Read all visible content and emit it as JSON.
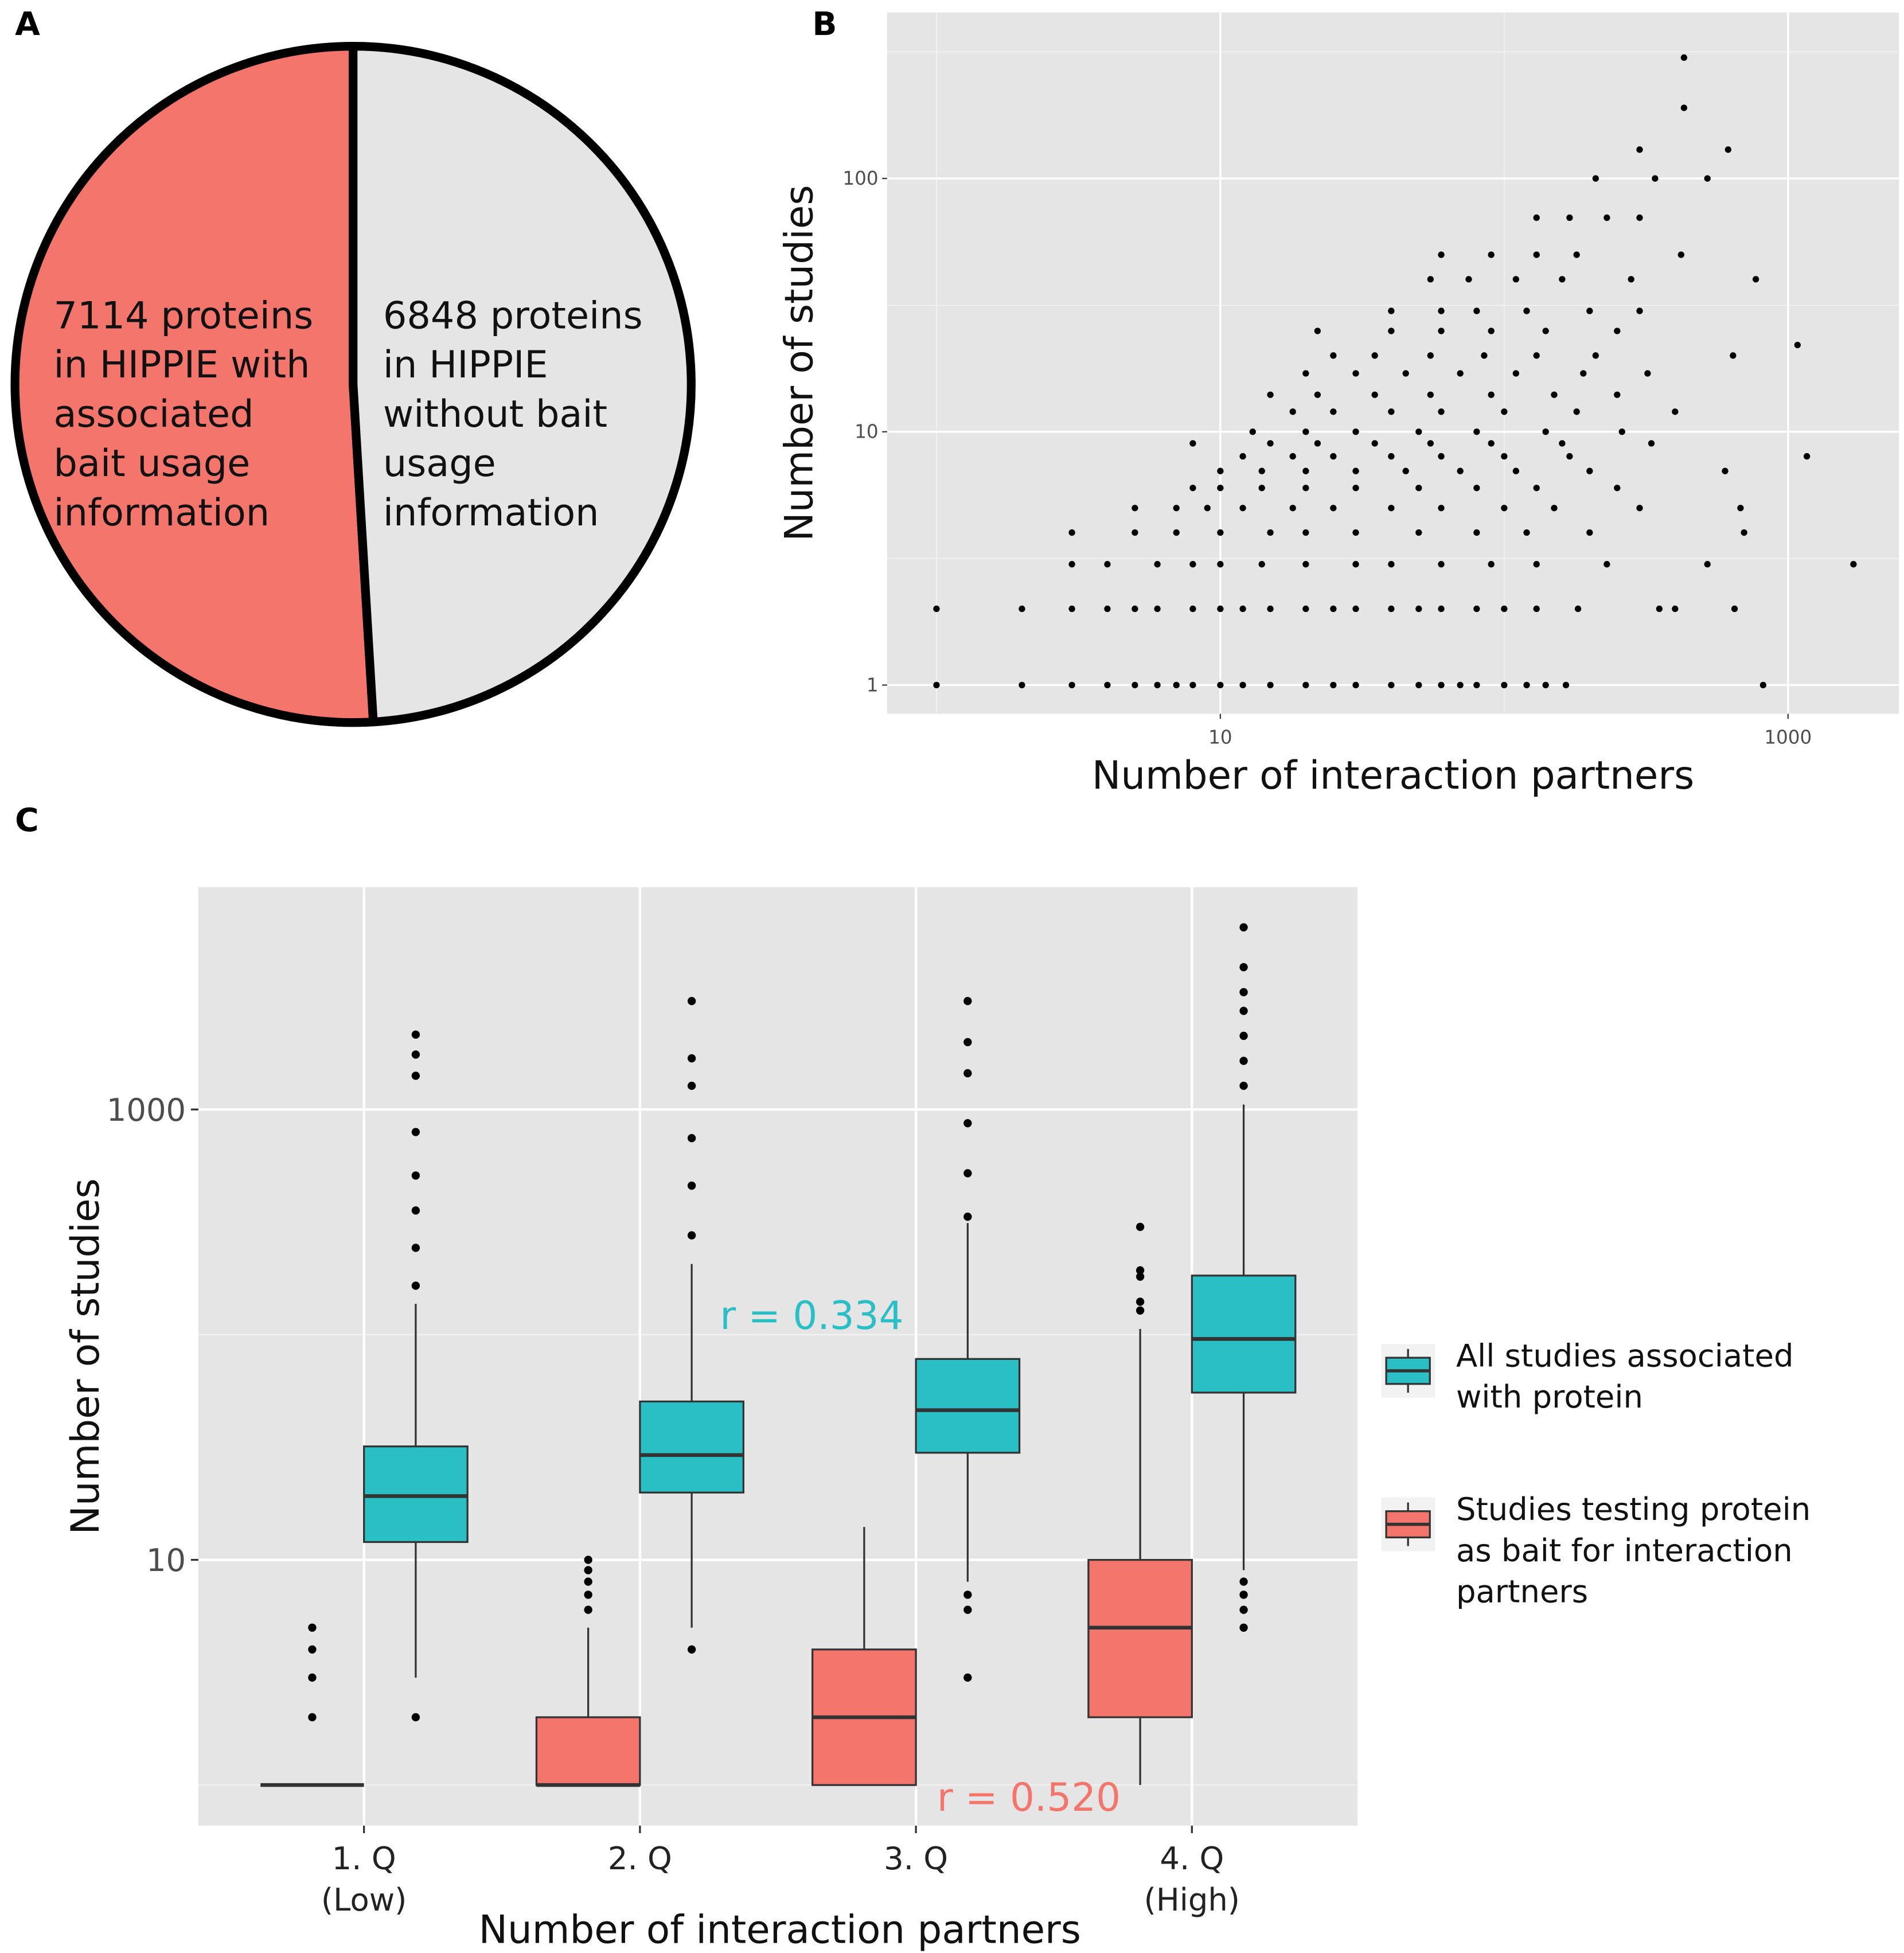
{
  "chart_data": [
    {
      "type": "pie",
      "panel": "A",
      "values": [
        7114,
        6848
      ],
      "colors": [
        "#f4756c",
        "#e5e5e5"
      ],
      "label_lines": [
        [
          "7114 proteins",
          "in HIPPIE with",
          "associated",
          "bait usage",
          "information"
        ],
        [
          "6848 proteins",
          "in HIPPIE",
          "without bait",
          "usage",
          "information"
        ]
      ]
    },
    {
      "type": "scatter",
      "panel": "B",
      "xlabel": "Number of interaction partners",
      "ylabel": "Number of studies",
      "log_x": true,
      "log_y": true,
      "grid": true,
      "color": "#000000",
      "xlim": [
        0.67,
        2460
      ],
      "ylim": [
        0.77,
        452
      ],
      "xticks": [
        10,
        1000
      ],
      "yticks": [
        1,
        10,
        100
      ],
      "minor_xticks": [
        1,
        100
      ],
      "minor_yticks": [
        3.16,
        31.6,
        316
      ],
      "x": [
        1,
        2,
        3,
        4,
        5,
        6,
        7,
        8,
        10,
        12,
        15,
        20,
        25,
        30,
        40,
        50,
        60,
        70,
        80,
        100,
        120,
        140,
        165,
        817,
        1,
        2,
        3,
        4,
        5,
        6,
        8,
        10,
        12,
        15,
        20,
        25,
        30,
        40,
        50,
        60,
        80,
        100,
        130,
        182,
        352,
        400,
        648,
        3,
        4,
        6,
        8,
        10,
        14,
        20,
        30,
        40,
        60,
        90,
        130,
        230,
        520,
        1700,
        3,
        5,
        7,
        10,
        15,
        20,
        30,
        50,
        80,
        120,
        200,
        700,
        5,
        7,
        9,
        12,
        18,
        25,
        40,
        60,
        100,
        150,
        300,
        680,
        8,
        10,
        14,
        20,
        30,
        50,
        80,
        130,
        250,
        10,
        14,
        20,
        30,
        45,
        70,
        110,
        200,
        600,
        12,
        18,
        25,
        40,
        60,
        100,
        170,
        1165,
        8,
        15,
        22,
        35,
        55,
        90,
        160,
        330,
        13,
        20,
        30,
        50,
        80,
        140,
        260,
        18,
        25,
        40,
        60,
        100,
        180,
        400,
        15,
        22,
        35,
        55,
        90,
        150,
        250,
        20,
        30,
        45,
        70,
        110,
        190,
        320,
        25,
        35,
        55,
        85,
        130,
        210,
        640,
        1080,
        22,
        40,
        60,
        90,
        140,
        250,
        40,
        60,
        80,
        120,
        200,
        300,
        55,
        75,
        110,
        160,
        280,
        770,
        60,
        90,
        130,
        180,
        420,
        130,
        170,
        230,
        300,
        210,
        340,
        520,
        300,
        615,
        430,
        430
      ],
      "y": [
        1,
        1,
        1,
        1,
        1,
        1,
        1,
        1,
        1,
        1,
        1,
        1,
        1,
        1,
        1,
        1,
        1,
        1,
        1,
        1,
        1,
        1,
        1,
        1,
        2,
        2,
        2,
        2,
        2,
        2,
        2,
        2,
        2,
        2,
        2,
        2,
        2,
        2,
        2,
        2,
        2,
        2,
        2,
        2,
        2,
        2,
        2,
        3,
        3,
        3,
        3,
        3,
        3,
        3,
        3,
        3,
        3,
        3,
        3,
        3,
        3,
        3,
        4,
        4,
        4,
        4,
        4,
        4,
        4,
        4,
        4,
        4,
        4,
        4,
        5,
        5,
        5,
        5,
        5,
        5,
        5,
        5,
        5,
        5,
        5,
        5,
        6,
        6,
        6,
        6,
        6,
        6,
        6,
        6,
        6,
        7,
        7,
        7,
        7,
        7,
        7,
        7,
        7,
        7,
        8,
        8,
        8,
        8,
        8,
        8,
        8,
        8,
        9,
        9,
        9,
        9,
        9,
        9,
        9,
        9,
        10,
        10,
        10,
        10,
        10,
        10,
        10,
        12,
        12,
        12,
        12,
        12,
        12,
        12,
        14,
        14,
        14,
        14,
        14,
        14,
        14,
        17,
        17,
        17,
        17,
        17,
        17,
        17,
        20,
        20,
        20,
        20,
        20,
        20,
        20,
        22,
        25,
        25,
        25,
        25,
        25,
        25,
        30,
        30,
        30,
        30,
        30,
        30,
        40,
        40,
        40,
        40,
        40,
        40,
        50,
        50,
        50,
        50,
        50,
        70,
        70,
        70,
        70,
        100,
        100,
        100,
        130,
        130,
        190,
        300
      ]
    },
    {
      "type": "box",
      "panel": "C",
      "xlabel": "Number of interaction partners",
      "ylabel": "Number of studies",
      "categories": [
        "1. Q",
        "2. Q",
        "3. Q",
        "4. Q"
      ],
      "category_sublabels": [
        "(Low)",
        null,
        null,
        "(High)"
      ],
      "log_y": true,
      "grid": true,
      "ylim": [
        0.66,
        9700
      ],
      "yticks": [
        10,
        1000
      ],
      "minor_yticks": [
        1,
        100
      ],
      "series": [
        {
          "name": "All studies associated with protein",
          "color": "#2abfc4",
          "low": [
            3,
            5,
            8,
            9
          ],
          "q1": [
            12,
            19.9,
            29.9,
            55.3
          ],
          "median": [
            19.2,
            29.2,
            46.2,
            95.7
          ],
          "q3": [
            31.9,
            50.5,
            78,
            183
          ],
          "high": [
            137,
            206,
            313,
            1052
          ],
          "outliers": [
            [
              2,
              165,
              243,
              356,
              509,
              794,
              1412,
              1754,
              2150
            ],
            [
              4,
              276,
              459,
              746,
              1274,
              1687,
              3030
            ],
            [
              3,
              6,
              7,
              334,
              521,
              869,
              1448,
              1991,
              3030
            ],
            [
              5,
              6,
              7,
              8,
              1274,
              1644,
              2123,
              2741,
              3318,
              4285,
              6440
            ]
          ]
        },
        {
          "name": "Studies testing protein as bait for interaction partners",
          "color": "#f4756c",
          "low": [
            1,
            1,
            1,
            1
          ],
          "q1": [
            1,
            1,
            1,
            2
          ],
          "median": [
            1,
            1,
            2,
            5
          ],
          "q3": [
            1,
            2,
            4,
            10
          ],
          "high": [
            1,
            5,
            14,
            106
          ],
          "outliers": [
            [
              2,
              3,
              4,
              5
            ],
            [
              6,
              7,
              8,
              9,
              10
            ],
            [],
            [
              128,
              140,
              181,
              193,
              301
            ]
          ]
        }
      ],
      "annotations": [
        {
          "text": "r = 0.334",
          "color": "#2abfc4"
        },
        {
          "text": "r = 0.520",
          "color": "#f4756c"
        }
      ]
    }
  ]
}
